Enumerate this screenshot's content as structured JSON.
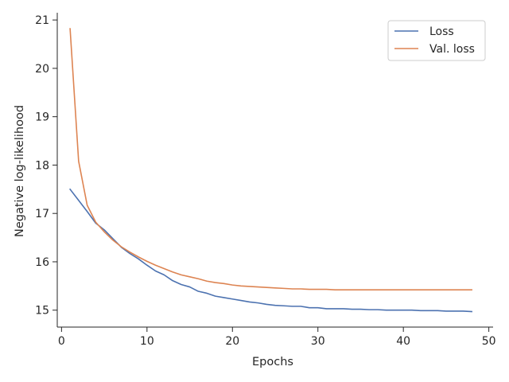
{
  "chart_data": {
    "type": "line",
    "title": "",
    "xlabel": "Epochs",
    "ylabel": "Negative log-likelihood",
    "xlim": [
      -0.5,
      50.5
    ],
    "ylim": [
      14.65,
      21.15
    ],
    "xticks": [
      0,
      10,
      20,
      30,
      40,
      50
    ],
    "yticks": [
      15,
      16,
      17,
      18,
      19,
      20,
      21
    ],
    "grid": false,
    "legend_position": "top-right",
    "series": [
      {
        "name": "Loss",
        "color": "#4c72b0",
        "x": [
          1,
          2,
          3,
          4,
          5,
          6,
          7,
          8,
          9,
          10,
          11,
          12,
          13,
          14,
          15,
          16,
          17,
          18,
          19,
          20,
          21,
          22,
          23,
          24,
          25,
          26,
          27,
          28,
          29,
          30,
          31,
          32,
          33,
          34,
          35,
          36,
          37,
          38,
          39,
          40,
          41,
          42,
          43,
          44,
          45,
          46,
          47,
          48
        ],
        "y": [
          17.5,
          17.27,
          17.04,
          16.8,
          16.66,
          16.48,
          16.3,
          16.17,
          16.06,
          15.93,
          15.81,
          15.73,
          15.61,
          15.53,
          15.48,
          15.39,
          15.35,
          15.29,
          15.26,
          15.23,
          15.2,
          15.17,
          15.15,
          15.12,
          15.1,
          15.09,
          15.08,
          15.08,
          15.05,
          15.05,
          15.03,
          15.03,
          15.03,
          15.02,
          15.02,
          15.01,
          15.01,
          15.0,
          15.0,
          15.0,
          15.0,
          14.99,
          14.99,
          14.99,
          14.98,
          14.98,
          14.98,
          14.97
        ]
      },
      {
        "name": "Val. loss",
        "color": "#dd8452",
        "x": [
          1,
          2,
          3,
          4,
          5,
          6,
          7,
          8,
          9,
          10,
          11,
          12,
          13,
          14,
          15,
          16,
          17,
          18,
          19,
          20,
          21,
          22,
          23,
          24,
          25,
          26,
          27,
          28,
          29,
          30,
          31,
          32,
          33,
          34,
          35,
          36,
          37,
          38,
          39,
          40,
          41,
          42,
          43,
          44,
          45,
          46,
          47,
          48
        ],
        "y": [
          20.82,
          18.08,
          17.17,
          16.82,
          16.62,
          16.45,
          16.31,
          16.2,
          16.1,
          16.01,
          15.93,
          15.86,
          15.79,
          15.73,
          15.69,
          15.65,
          15.6,
          15.57,
          15.55,
          15.52,
          15.5,
          15.49,
          15.48,
          15.47,
          15.46,
          15.45,
          15.44,
          15.44,
          15.43,
          15.43,
          15.43,
          15.42,
          15.42,
          15.42,
          15.42,
          15.42,
          15.42,
          15.42,
          15.42,
          15.42,
          15.42,
          15.42,
          15.42,
          15.42,
          15.42,
          15.42,
          15.42,
          15.42
        ]
      }
    ]
  }
}
